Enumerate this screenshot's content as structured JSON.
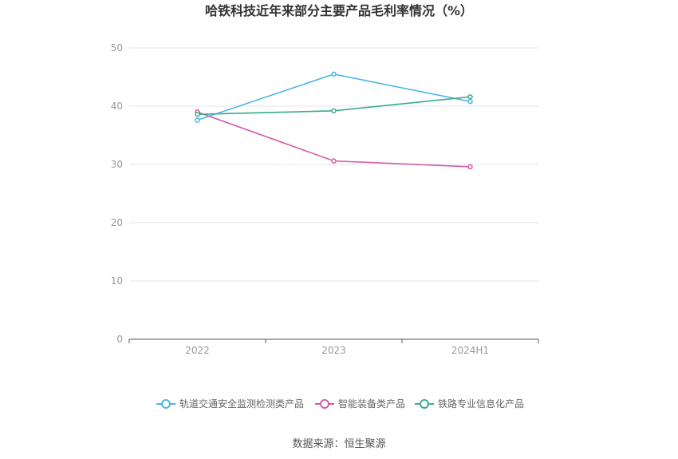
{
  "chart_data": {
    "type": "line",
    "title": "哈铁科技近年来部分主要产品毛利率情况（%）",
    "categories": [
      "2022",
      "2023",
      "2024H1"
    ],
    "yticks": [
      "0",
      "10",
      "20",
      "30",
      "40",
      "50"
    ],
    "ylim": [
      0,
      50
    ],
    "grid": true,
    "legend": "bottom",
    "series": [
      {
        "name": "轨道交通安全监测检测类产品",
        "values": [
          37.6,
          45.5,
          40.8
        ],
        "color": "#4db6e8"
      },
      {
        "name": "智能装备类产品",
        "values": [
          39.0,
          30.6,
          29.6
        ],
        "color": "#d45ba8"
      },
      {
        "name": "铁路专业信息化产品",
        "values": [
          38.6,
          39.2,
          41.6
        ],
        "color": "#3aab8e"
      }
    ]
  },
  "footer": {
    "source": "数据来源：恒生聚源"
  }
}
